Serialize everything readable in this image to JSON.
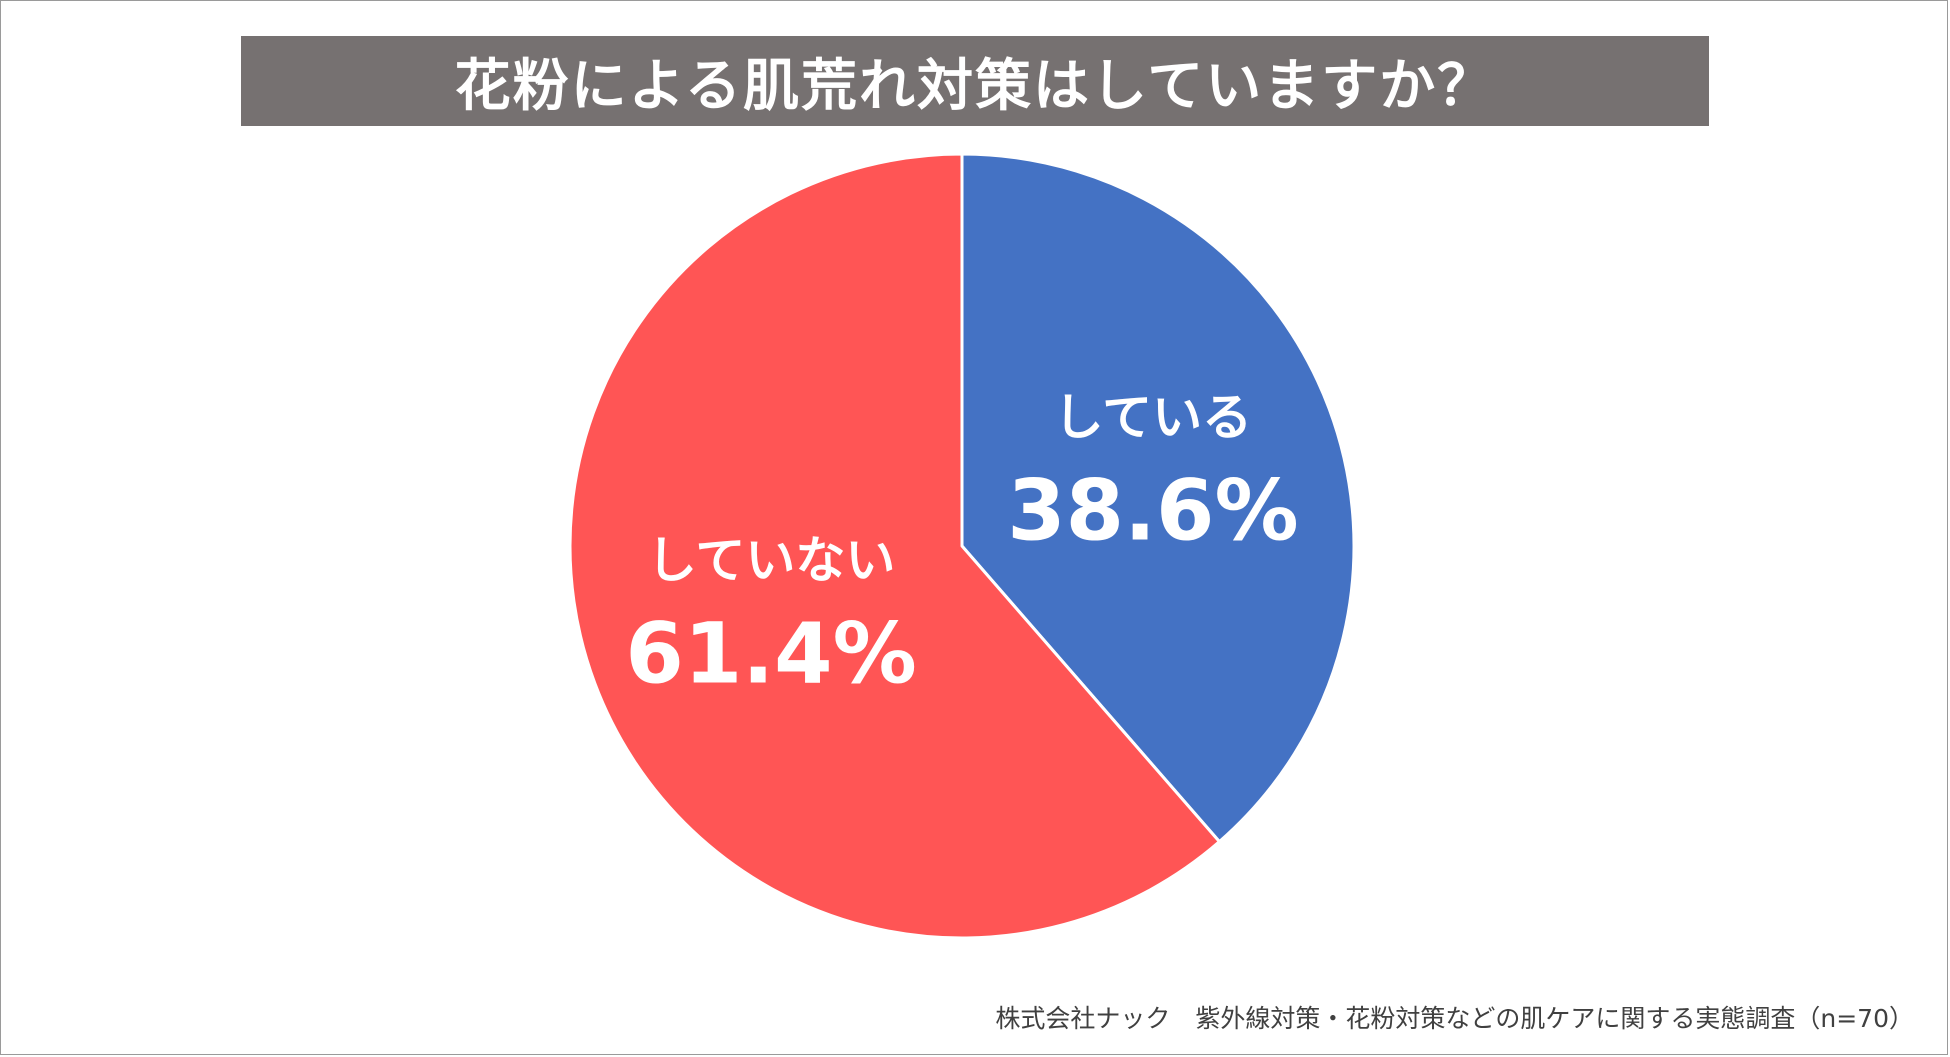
{
  "chart_data": {
    "type": "pie",
    "title": "花粉による肌荒れ対策はしていますか？",
    "start_angle_deg": 0,
    "direction": "clockwise",
    "slices": [
      {
        "label": "している",
        "value": 38.6,
        "value_label": "38.6%",
        "color": "#4472C4"
      },
      {
        "label": "していない",
        "value": 61.4,
        "value_label": "61.4%",
        "color": "#FF5555"
      }
    ],
    "slice_border_color": "#ffffff"
  },
  "title_bar_color": "#767171",
  "source_note": "株式会社ナック　紫外線対策・花粉対策などの肌ケアに関する実態調査（n=70）"
}
